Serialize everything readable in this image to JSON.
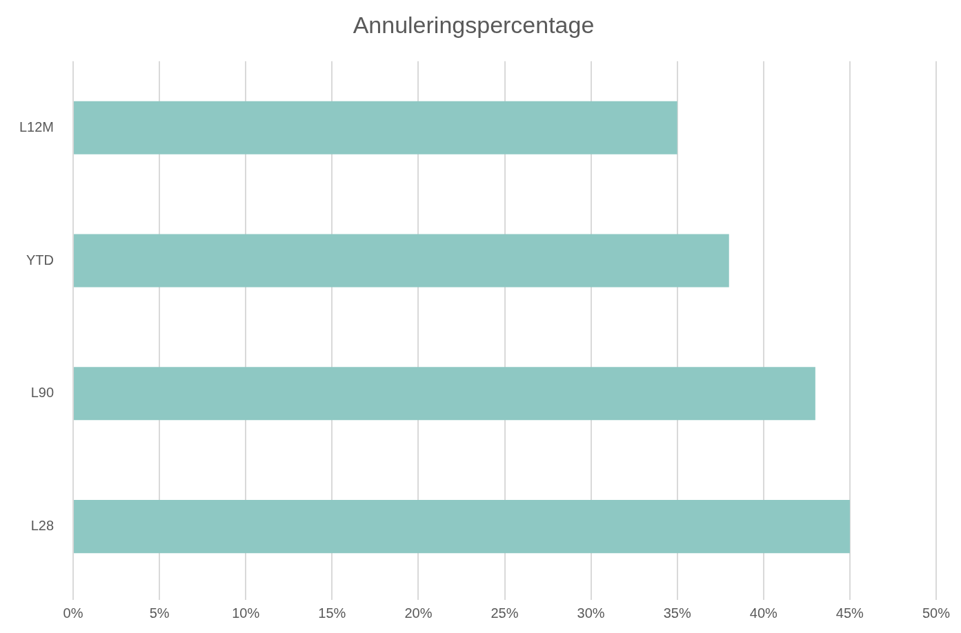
{
  "chart_data": {
    "type": "bar",
    "orientation": "horizontal",
    "title": "Annuleringspercentage",
    "categories": [
      "L12M",
      "YTD",
      "L90",
      "L28"
    ],
    "values": [
      35,
      38,
      43,
      45
    ],
    "color": "#8ec8c3",
    "xlim": [
      0,
      50
    ],
    "xticks": [
      {
        "value": 0,
        "label": "0%"
      },
      {
        "value": 5,
        "label": "5%"
      },
      {
        "value": 10,
        "label": "10%"
      },
      {
        "value": 15,
        "label": "15%"
      },
      {
        "value": 20,
        "label": "20%"
      },
      {
        "value": 25,
        "label": "25%"
      },
      {
        "value": 30,
        "label": "30%"
      },
      {
        "value": 35,
        "label": "35%"
      },
      {
        "value": 40,
        "label": "40%"
      },
      {
        "value": 45,
        "label": "45%"
      },
      {
        "value": 50,
        "label": "50%"
      }
    ],
    "grid": "x"
  }
}
